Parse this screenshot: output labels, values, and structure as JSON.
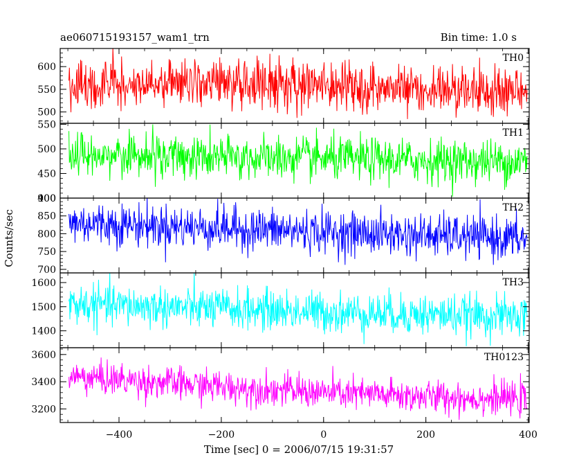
{
  "header": {
    "title": "ae060715193157_wam1_trn",
    "bin_time": "Bin time: 1.0 s"
  },
  "chart_data": {
    "type": "line",
    "xlabel": "Time [sec] 0 = 2006/07/15 19:31:57",
    "ylabel": "Counts/sec",
    "xlim": [
      -515,
      402
    ],
    "x_range": [
      -498,
      398
    ],
    "x_ticks": [
      -400,
      -200,
      0,
      200,
      400
    ],
    "grid": false,
    "panels": [
      {
        "label": "TH0",
        "color": "#ff0000",
        "ylim": [
          475,
          640
        ],
        "y_ticks": [
          500,
          550,
          600
        ],
        "trend": [
          [
            -498,
            565
          ],
          [
            -250,
            562
          ],
          [
            0,
            556
          ],
          [
            200,
            548
          ],
          [
            398,
            545
          ]
        ],
        "noise": 28
      },
      {
        "label": "TH1",
        "color": "#00ff00",
        "ylim": [
          400,
          552
        ],
        "y_ticks": [
          400,
          450,
          500,
          550
        ],
        "trend": [
          [
            -498,
            488
          ],
          [
            -250,
            483
          ],
          [
            0,
            480
          ],
          [
            200,
            476
          ],
          [
            398,
            474
          ]
        ],
        "noise": 22
      },
      {
        "label": "TH2",
        "color": "#0000ff",
        "ylim": [
          690,
          900
        ],
        "y_ticks": [
          700,
          750,
          800,
          850,
          900
        ],
        "trend": [
          [
            -498,
            832
          ],
          [
            -250,
            818
          ],
          [
            0,
            805
          ],
          [
            200,
            795
          ],
          [
            398,
            785
          ]
        ],
        "noise": 30
      },
      {
        "label": "TH3",
        "color": "#00ffff",
        "ylim": [
          1330,
          1640
        ],
        "y_ticks": [
          1400,
          1500,
          1600
        ],
        "trend": [
          [
            -498,
            1510
          ],
          [
            -250,
            1495
          ],
          [
            0,
            1478
          ],
          [
            200,
            1468
          ],
          [
            398,
            1458
          ]
        ],
        "noise": 42
      },
      {
        "label": "TH0123",
        "color": "#ff00ff",
        "ylim": [
          3100,
          3650
        ],
        "y_ticks": [
          3200,
          3400,
          3600
        ],
        "trend": [
          [
            -498,
            3440
          ],
          [
            -250,
            3375
          ],
          [
            0,
            3320
          ],
          [
            200,
            3290
          ],
          [
            398,
            3270
          ]
        ],
        "noise": 60
      }
    ]
  }
}
